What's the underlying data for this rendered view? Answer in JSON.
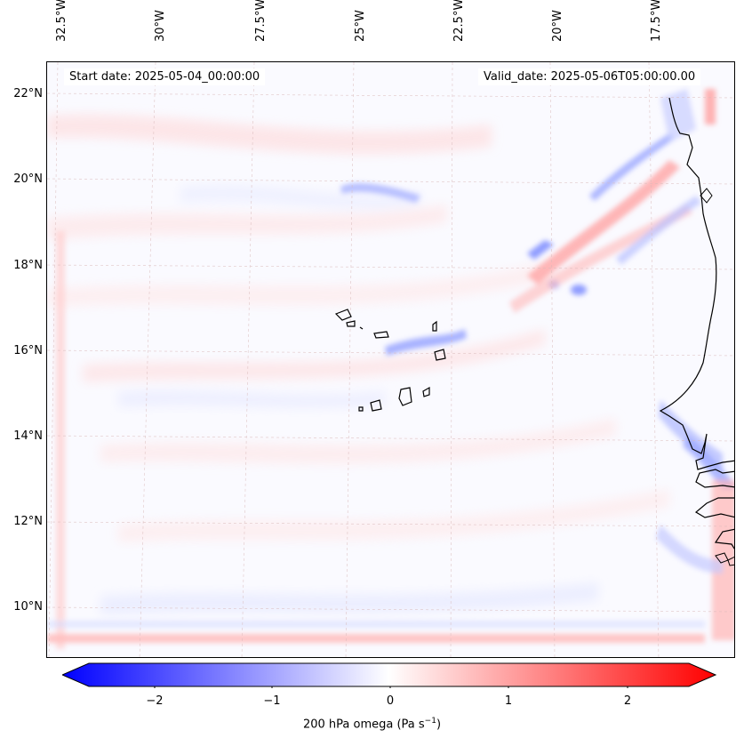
{
  "map": {
    "start_label": "Start date: 2025-05-04_00:00:00",
    "valid_label": "Valid_date: 2025-05-06T05:00:00.00",
    "lon_ticks": [
      "32.5°W",
      "30°W",
      "27.5°W",
      "25°W",
      "22.5°W",
      "20°W",
      "17.5°W"
    ],
    "lat_ticks": [
      "22°N",
      "20°N",
      "18°N",
      "16°N",
      "14°N",
      "12°N",
      "10°N"
    ],
    "colorbar": {
      "ticks": [
        "−2",
        "−1",
        "0",
        "1",
        "2"
      ],
      "label_main": "200 hPa omega (Pa s",
      "label_sup": "−1",
      "label_end": ")",
      "min": -2.75,
      "max": 2.75,
      "colors": {
        "negative": "#0000ff",
        "zero": "#ffffff",
        "positive": "#ff0000"
      }
    }
  }
}
